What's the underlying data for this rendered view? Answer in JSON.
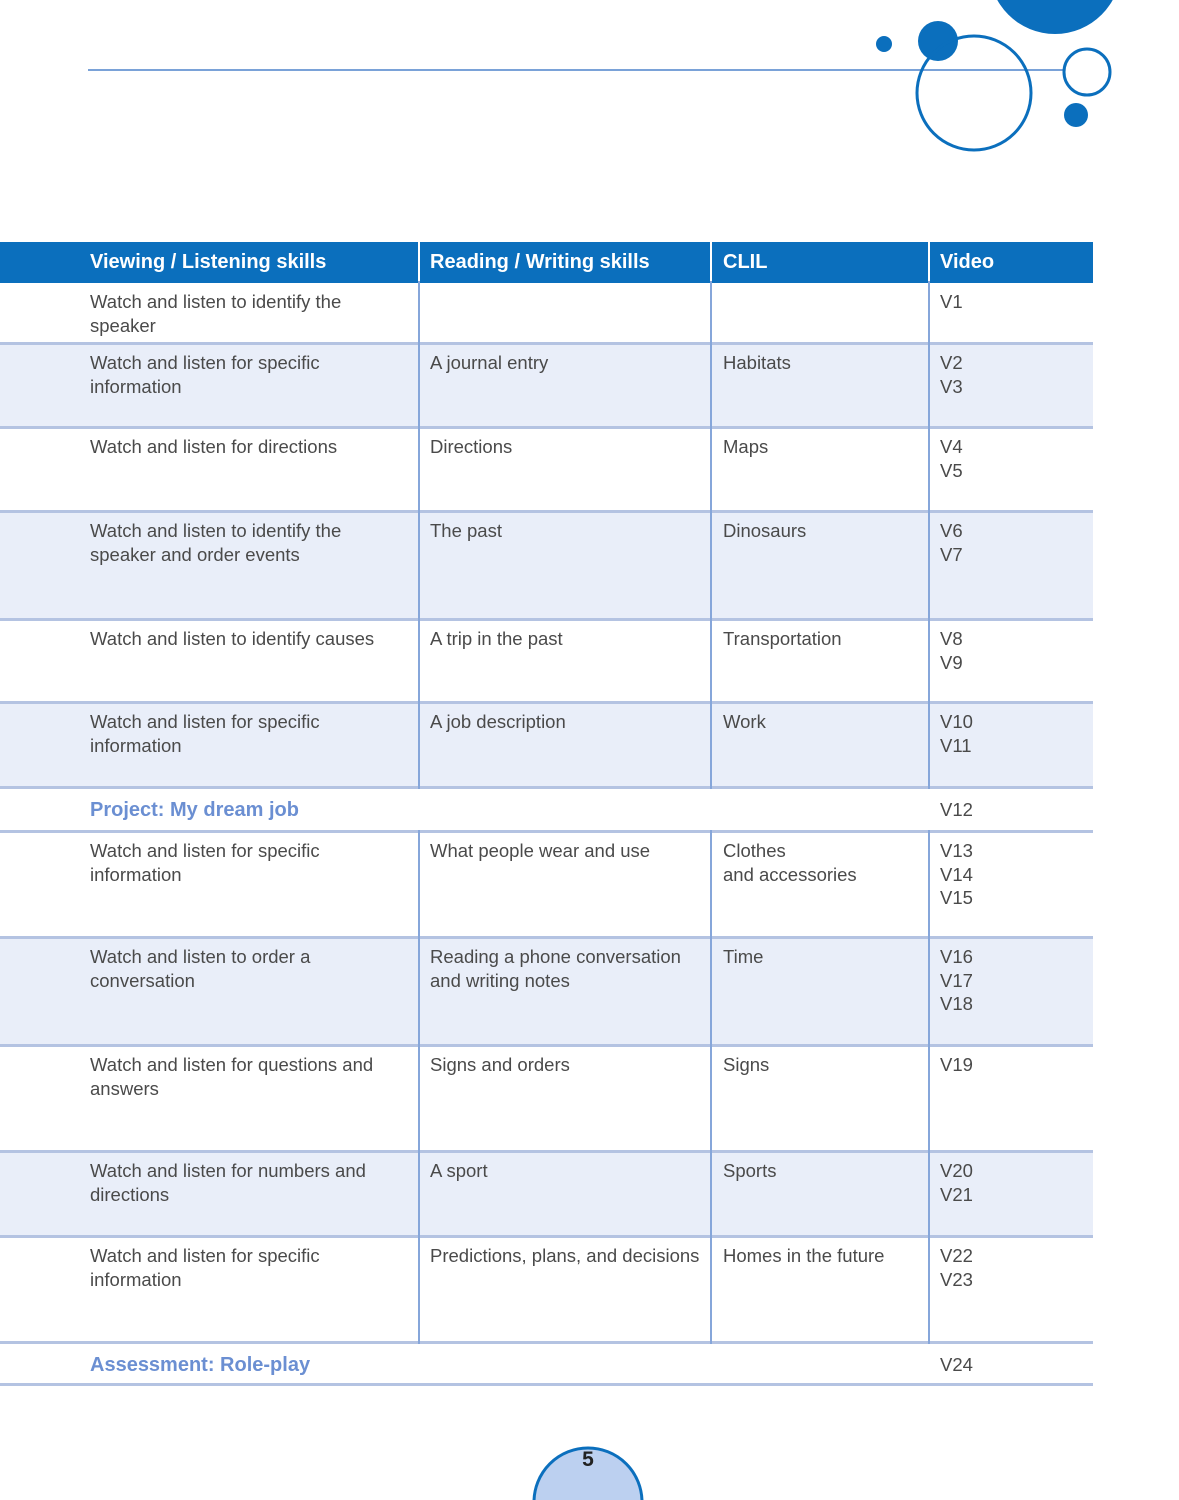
{
  "header": {
    "columns": [
      "Viewing / Listening skills",
      "Reading / Writing skills",
      "CLIL",
      "Video"
    ]
  },
  "rows": [
    {
      "listening": "Watch and listen to identify the speaker",
      "video": [
        "V1"
      ]
    },
    {
      "listening": "Watch and listen for specific information",
      "reading": "A journal entry",
      "clil": [
        "Habitats"
      ],
      "video": [
        "V2",
        "V3"
      ]
    },
    {
      "listening": "Watch and listen for directions",
      "reading": "Directions",
      "clil": [
        "Maps"
      ],
      "video": [
        "V4",
        "V5"
      ]
    },
    {
      "listening": "Watch and listen to identify the speaker and order events",
      "reading": "The past",
      "clil": [
        "Dinosaurs"
      ],
      "video": [
        "V6",
        "V7"
      ]
    },
    {
      "listening": "Watch and listen to identify causes",
      "reading": "A trip in the past",
      "clil": [
        "Transportation"
      ],
      "video": [
        "V8",
        "V9"
      ]
    },
    {
      "listening": "Watch and listen for specific information",
      "reading": "A job description",
      "clil": [
        "Work"
      ],
      "video": [
        "V10",
        "V11"
      ]
    },
    {
      "label": "Project: My dream job",
      "video": [
        "V12"
      ]
    },
    {
      "listening": "Watch and listen for specific information",
      "reading": "What people wear and use",
      "clil": [
        "Clothes",
        "and accessories"
      ],
      "video": [
        "V13",
        "V14",
        "V15"
      ]
    },
    {
      "listening": "Watch and listen to order a conversation",
      "reading": "Reading a phone conversation and writing notes",
      "clil": [
        "Time"
      ],
      "video": [
        "V16",
        "V17",
        "V18"
      ]
    },
    {
      "listening": "Watch and listen for questions and answers",
      "reading": "Signs and orders",
      "clil": [
        "Signs"
      ],
      "video": [
        "V19"
      ]
    },
    {
      "listening": "Watch and listen for numbers and directions",
      "reading": "A sport",
      "clil": [
        "Sports"
      ],
      "video": [
        "V20",
        "V21"
      ]
    },
    {
      "listening": "Watch and listen for specific information",
      "reading": "Predictions, plans, and decisions",
      "clil": [
        "Homes in the future"
      ],
      "video": [
        "V22",
        "V23"
      ]
    },
    {
      "label": "Assessment: Role-play",
      "video": [
        "V24"
      ]
    }
  ],
  "page_number": "5"
}
